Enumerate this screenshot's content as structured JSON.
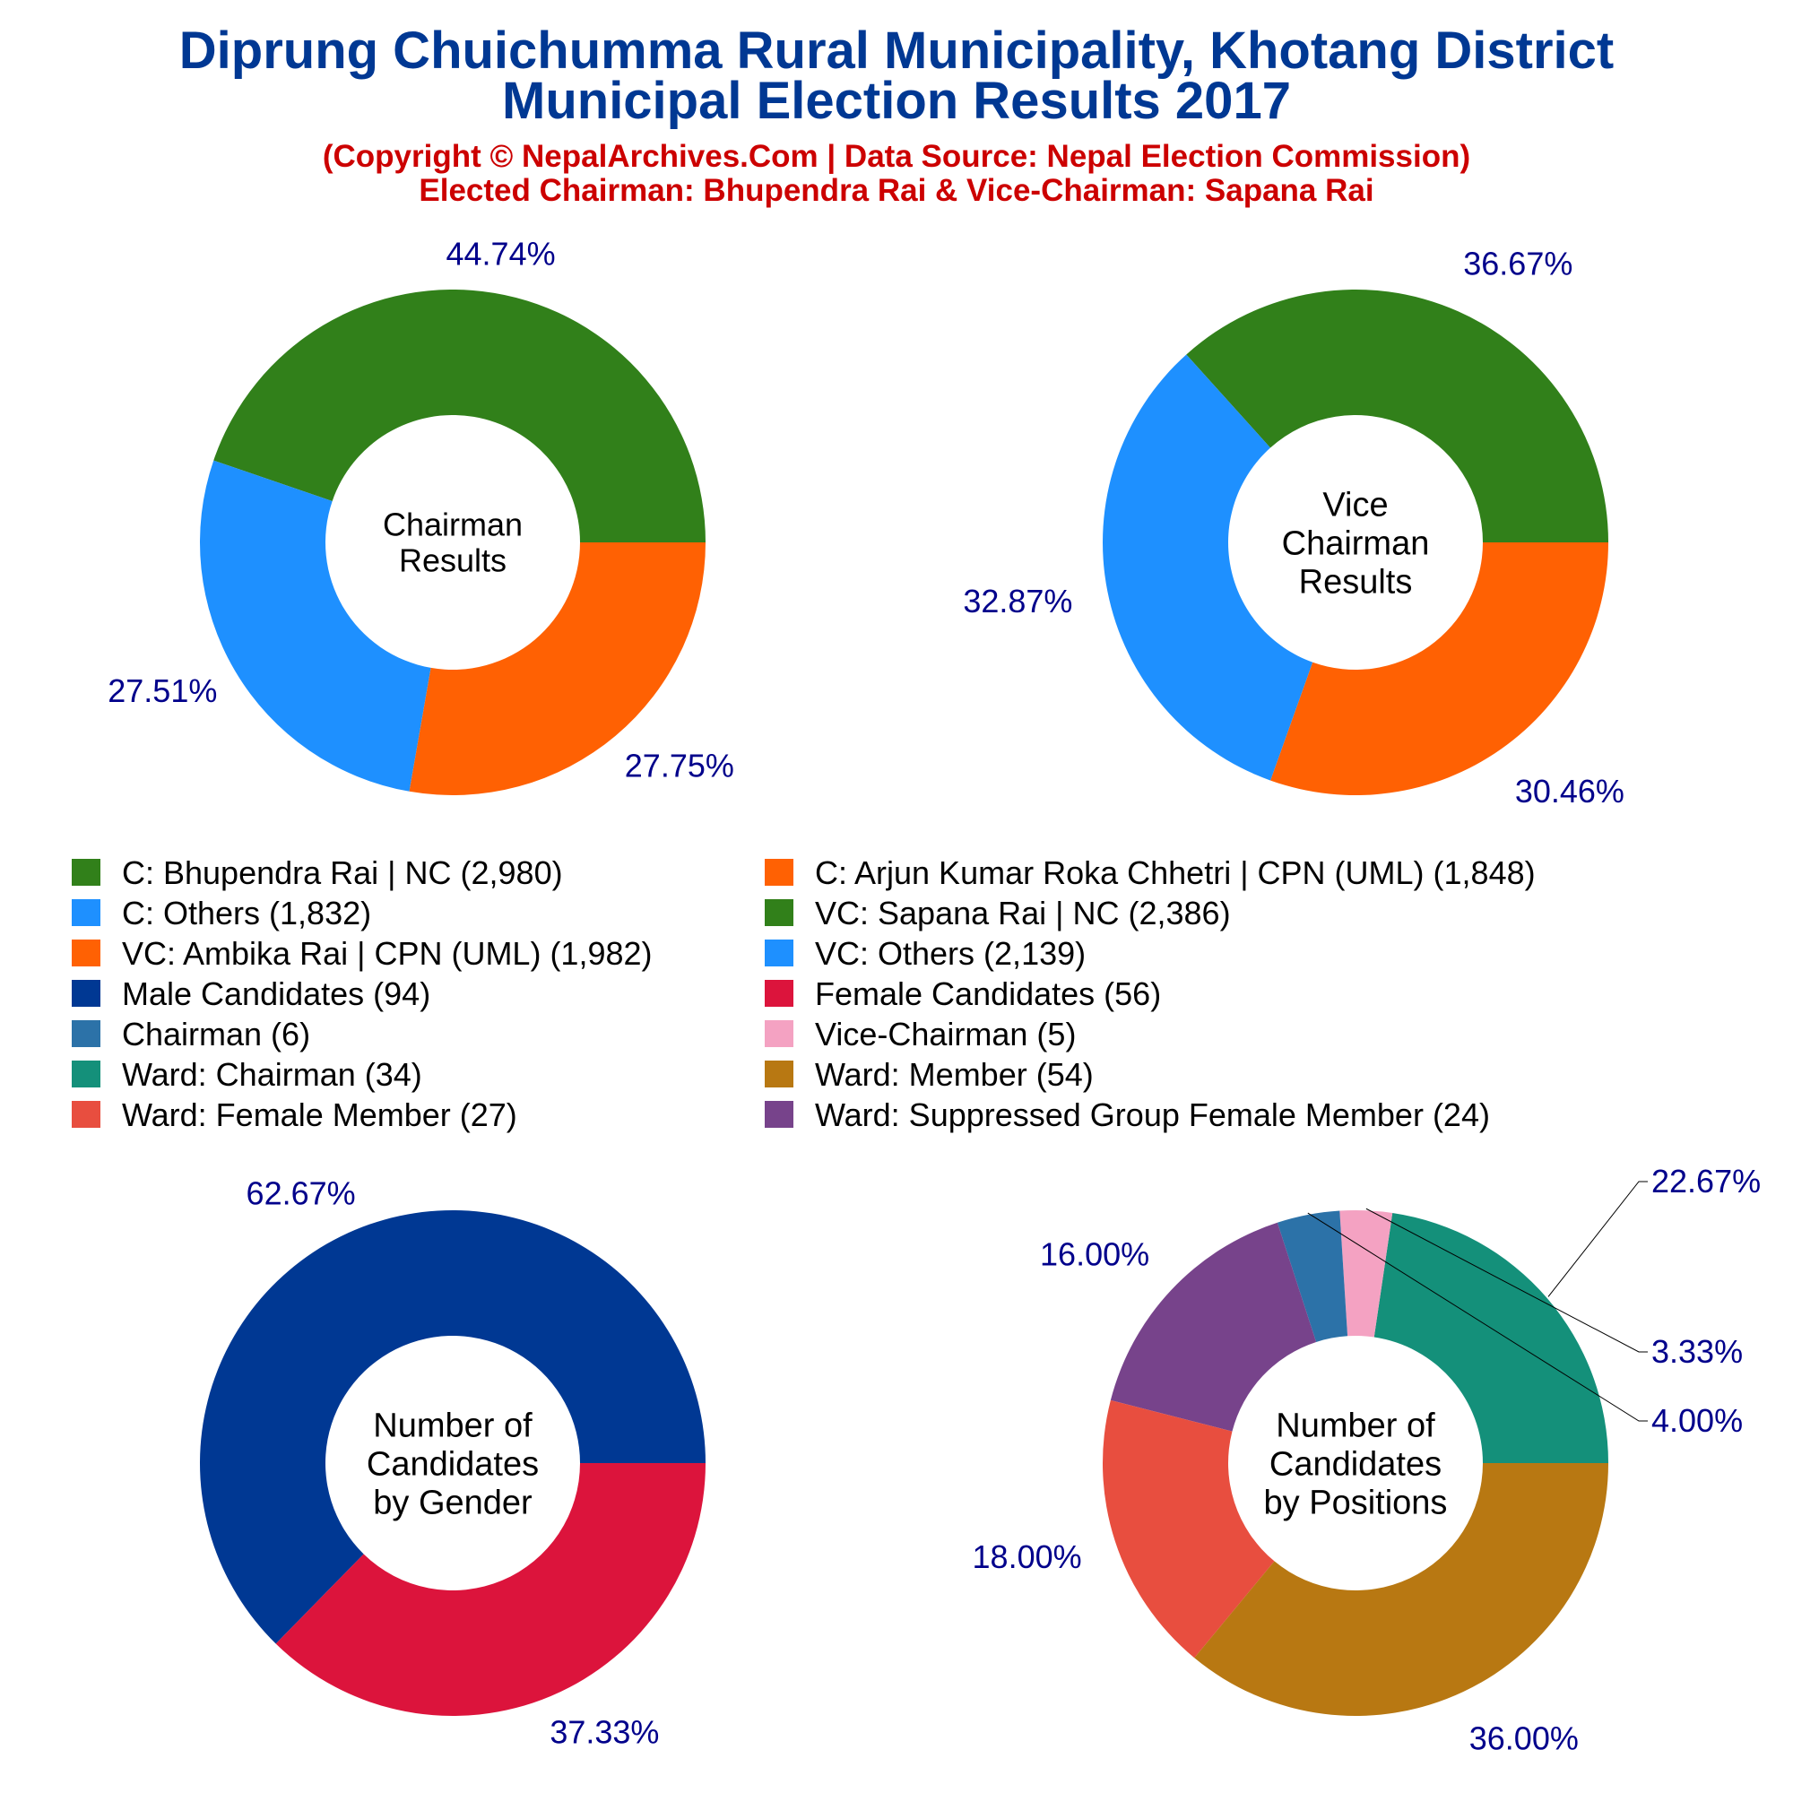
{
  "title_line1": "Diprung Chuichumma Rural Municipality, Khotang District",
  "title_line2": "Municipal Election Results 2017",
  "subtitle_line1": "(Copyright © NepalArchives.Com | Data Source: Nepal Election Commission)",
  "subtitle_line2": "Elected Chairman: Bhupendra Rai & Vice-Chairman: Sapana Rai",
  "legend": {
    "columns": 2,
    "items": [
      {
        "label": "C: Bhupendra Rai | NC (2,980)",
        "color": "#31801a"
      },
      {
        "label": "C: Arjun Kumar Roka Chhetri | CPN (UML) (1,848)",
        "color": "#ff6103"
      },
      {
        "label": "C: Others (1,832)",
        "color": "#1e90ff"
      },
      {
        "label": "VC: Sapana Rai | NC (2,386)",
        "color": "#31801a"
      },
      {
        "label": "VC: Ambika Rai | CPN (UML) (1,982)",
        "color": "#ff6103"
      },
      {
        "label": "VC: Others (2,139)",
        "color": "#1e90ff"
      },
      {
        "label": "Male Candidates (94)",
        "color": "#003893"
      },
      {
        "label": "Female Candidates (56)",
        "color": "#dc143c"
      },
      {
        "label": "Chairman (6)",
        "color": "#2c72a8"
      },
      {
        "label": "Vice-Chairman (5)",
        "color": "#f4a2c2"
      },
      {
        "label": "Ward: Chairman (34)",
        "color": "#14907a"
      },
      {
        "label": "Ward: Member (54)",
        "color": "#b87812"
      },
      {
        "label": "Ward: Female Member (27)",
        "color": "#e84e3f"
      },
      {
        "label": "Ward: Suppressed Group Female Member (24)",
        "color": "#77438b"
      }
    ]
  },
  "chart_data": [
    {
      "type": "pie",
      "donut": true,
      "center_label": [
        "Chairman",
        "Results"
      ],
      "slices": [
        {
          "name": "C: Bhupendra Rai | NC",
          "value": 2980,
          "pct_label": "44.74%",
          "color": "#31801a"
        },
        {
          "name": "C: Others",
          "value": 1832,
          "pct_label": "27.51%",
          "color": "#1e90ff"
        },
        {
          "name": "C: Arjun Kumar Roka Chhetri | CPN (UML)",
          "value": 1848,
          "pct_label": "27.75%",
          "color": "#ff6103"
        }
      ]
    },
    {
      "type": "pie",
      "donut": true,
      "center_label": [
        "Vice",
        "Chairman",
        "Results"
      ],
      "slices": [
        {
          "name": "VC: Sapana Rai | NC",
          "value": 2386,
          "pct_label": "36.67%",
          "color": "#31801a"
        },
        {
          "name": "VC: Others",
          "value": 2139,
          "pct_label": "32.87%",
          "color": "#1e90ff"
        },
        {
          "name": "VC: Ambika Rai | CPN (UML)",
          "value": 1982,
          "pct_label": "30.46%",
          "color": "#ff6103"
        }
      ]
    },
    {
      "type": "pie",
      "donut": true,
      "center_label": [
        "Number of",
        "Candidates",
        "by Gender"
      ],
      "slices": [
        {
          "name": "Male Candidates",
          "value": 94,
          "pct_label": "62.67%",
          "color": "#003893"
        },
        {
          "name": "Female Candidates",
          "value": 56,
          "pct_label": "37.33%",
          "color": "#dc143c"
        }
      ]
    },
    {
      "type": "pie",
      "donut": true,
      "center_label": [
        "Number of",
        "Candidates",
        "by Positions"
      ],
      "slices": [
        {
          "name": "Ward: Chairman",
          "value": 34,
          "pct_label": "22.67%",
          "color": "#14907a"
        },
        {
          "name": "Vice-Chairman",
          "value": 5,
          "pct_label": "3.33%",
          "color": "#f4a2c2"
        },
        {
          "name": "Chairman",
          "value": 6,
          "pct_label": "4.00%",
          "color": "#2c72a8"
        },
        {
          "name": "Ward: Suppressed Group Female Member",
          "value": 24,
          "pct_label": "16.00%",
          "color": "#77438b"
        },
        {
          "name": "Ward: Female Member",
          "value": 27,
          "pct_label": "18.00%",
          "color": "#e84e3f"
        },
        {
          "name": "Ward: Member",
          "value": 54,
          "pct_label": "36.00%",
          "color": "#b87812"
        }
      ]
    }
  ]
}
